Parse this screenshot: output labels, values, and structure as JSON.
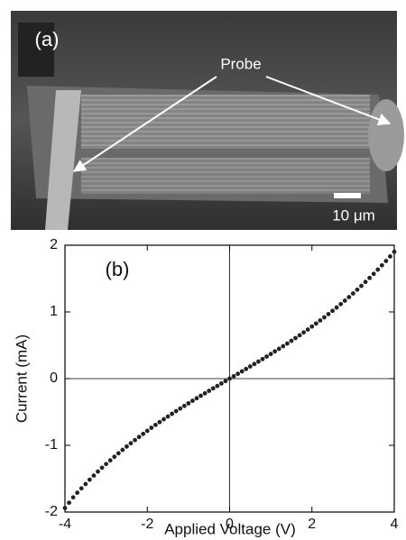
{
  "panel_a": {
    "label": "(a)",
    "probe_label": "Probe",
    "scale_bar_label": "10 μm"
  },
  "chart_data": {
    "type": "scatter",
    "annotation": "(b)",
    "x_label": "Applied Voltage (V)",
    "y_label": "Current (mA)",
    "color": "#222222",
    "xlim": [
      -4,
      4
    ],
    "ylim": [
      -2,
      2
    ],
    "xticks": [
      -4,
      -2,
      0,
      2,
      4
    ],
    "yticks": [
      -2,
      -1,
      0,
      1,
      2
    ],
    "zero_lines": true,
    "x": [
      -4.0,
      -3.9,
      -3.8,
      -3.7,
      -3.6,
      -3.5,
      -3.4,
      -3.3,
      -3.2,
      -3.1,
      -3.0,
      -2.9,
      -2.8,
      -2.7,
      -2.6,
      -2.5,
      -2.4,
      -2.3,
      -2.2,
      -2.1,
      -2.0,
      -1.9,
      -1.8,
      -1.7,
      -1.6,
      -1.5,
      -1.4,
      -1.3,
      -1.2,
      -1.1,
      -1.0,
      -0.9,
      -0.8,
      -0.7,
      -0.6,
      -0.5,
      -0.4,
      -0.3,
      -0.2,
      -0.1,
      0.0,
      0.1,
      0.2,
      0.3,
      0.4,
      0.5,
      0.6,
      0.7,
      0.8,
      0.9,
      1.0,
      1.1,
      1.2,
      1.3,
      1.4,
      1.5,
      1.6,
      1.7,
      1.8,
      1.9,
      2.0,
      2.1,
      2.2,
      2.3,
      2.4,
      2.5,
      2.6,
      2.7,
      2.8,
      2.9,
      3.0,
      3.1,
      3.2,
      3.3,
      3.4,
      3.5,
      3.6,
      3.7,
      3.8,
      3.9,
      4.0
    ],
    "values": [
      -1.94,
      -1.86,
      -1.78,
      -1.71,
      -1.645,
      -1.58,
      -1.515,
      -1.453,
      -1.393,
      -1.336,
      -1.28,
      -1.225,
      -1.171,
      -1.119,
      -1.068,
      -1.018,
      -0.969,
      -0.921,
      -0.874,
      -0.828,
      -0.783,
      -0.737,
      -0.694,
      -0.651,
      -0.609,
      -0.568,
      -0.527,
      -0.487,
      -0.448,
      -0.409,
      -0.37,
      -0.332,
      -0.294,
      -0.257,
      -0.22,
      -0.183,
      -0.146,
      -0.11,
      -0.073,
      -0.037,
      0.0,
      0.036,
      0.072,
      0.109,
      0.145,
      0.182,
      0.219,
      0.256,
      0.293,
      0.331,
      0.369,
      0.408,
      0.447,
      0.486,
      0.526,
      0.567,
      0.608,
      0.65,
      0.693,
      0.736,
      0.781,
      0.826,
      0.872,
      0.919,
      0.967,
      1.016,
      1.066,
      1.117,
      1.169,
      1.222,
      1.277,
      1.333,
      1.39,
      1.449,
      1.509,
      1.571,
      1.634,
      1.698,
      1.764,
      1.832,
      1.901
    ]
  }
}
